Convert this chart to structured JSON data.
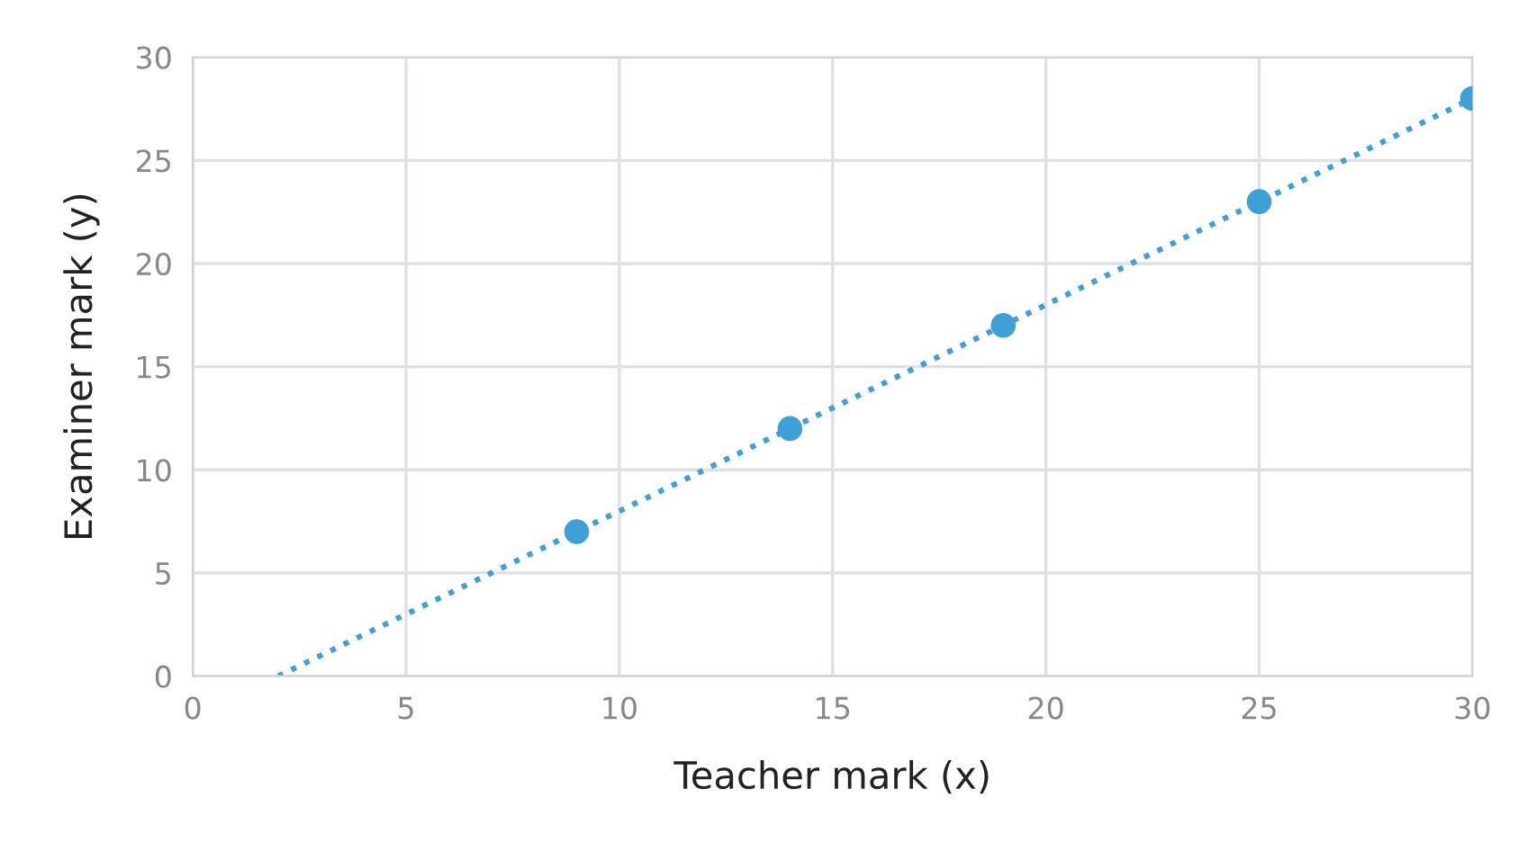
{
  "chart_data": {
    "type": "scatter",
    "xlabel": "Teacher mark (x)",
    "ylabel": "Examiner mark (y)",
    "xlim": [
      0,
      30
    ],
    "ylim": [
      0,
      30
    ],
    "xticks": [
      0,
      5,
      10,
      15,
      20,
      25,
      30
    ],
    "yticks": [
      0,
      5,
      10,
      15,
      20,
      25,
      30
    ],
    "grid": true,
    "series": [
      {
        "color": "#3fa0d8",
        "marker": "circle",
        "x": [
          9,
          14,
          19,
          25,
          30
        ],
        "values": [
          7,
          12,
          17,
          23,
          28
        ]
      },
      {
        "type": "line",
        "color": "#3fa0d8",
        "line_style": "dotted",
        "marker": "none",
        "x": [
          2,
          30
        ],
        "values": [
          0,
          28
        ]
      }
    ]
  }
}
